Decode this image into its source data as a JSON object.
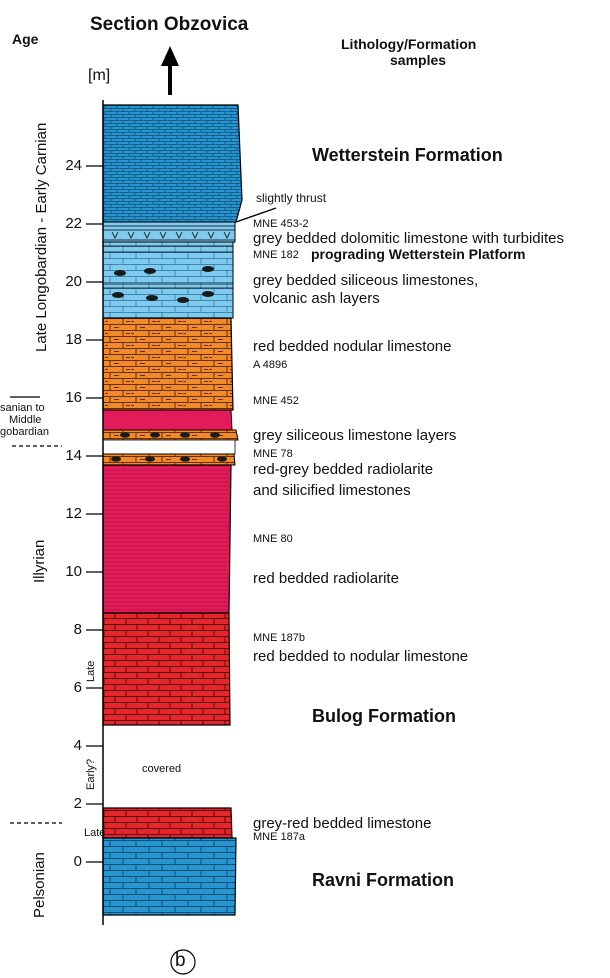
{
  "header": {
    "age_label": "Age",
    "title": "Section Obzovica",
    "unit": "[m]",
    "lithology_title": "Lithology/Formation",
    "lithology_sub": "samples"
  },
  "axis": {
    "ticks": [
      "0",
      "2",
      "4",
      "6",
      "8",
      "10",
      "12",
      "14",
      "16",
      "18",
      "20",
      "22",
      "24"
    ]
  },
  "ages": {
    "upper": "Late Longobardian - Early Carnian",
    "transition": [
      "sanian to",
      "Middle",
      "gobardian"
    ],
    "illyrian": "Illyrian",
    "late_upper": "Late",
    "early_q": "Early?",
    "late_lower": "Late",
    "pelsonian": "Pelsonian"
  },
  "annotations": {
    "slightly_thrust": "slightly thrust",
    "mne_453_2": "MNE 453-2",
    "dolomitic": "grey bedded dolomitic limestone with turbidites",
    "mne_182": "MNE 182",
    "prograding": "prograding Wetterstein Platform",
    "siliceous_1": "grey bedded siliceous limestones,",
    "siliceous_2": "volcanic ash layers",
    "red_nodular": "red bedded nodular limestone",
    "a4896": "A 4896",
    "mne_452": "MNE 452",
    "grey_sil_layers": "grey siliceous limestone layers",
    "mne_78": "MNE 78",
    "radiolarite_1": "red-grey bedded radiolarite",
    "radiolarite_2": "and silicified limestones",
    "mne_80": "MNE 80",
    "red_radiolarite": "red bedded radiolarite",
    "mne_187b": "MNE 187b",
    "red_to_nodular": "red bedded to nodular limestone",
    "covered": "covered",
    "grey_red": "grey-red bedded limestone",
    "mne_187a": "MNE 187a"
  },
  "formations": {
    "wetterstein": "Wetterstein Formation",
    "bulog": "Bulog Formation",
    "ravni": "Ravni Formation"
  },
  "panel_label": "b",
  "colors": {
    "blue": "#2796d0",
    "light_blue": "#7fcbef",
    "orange": "#f08a2a",
    "magenta": "#e21b5a",
    "red": "#e5262a",
    "nodule": "#1a1a1a"
  }
}
